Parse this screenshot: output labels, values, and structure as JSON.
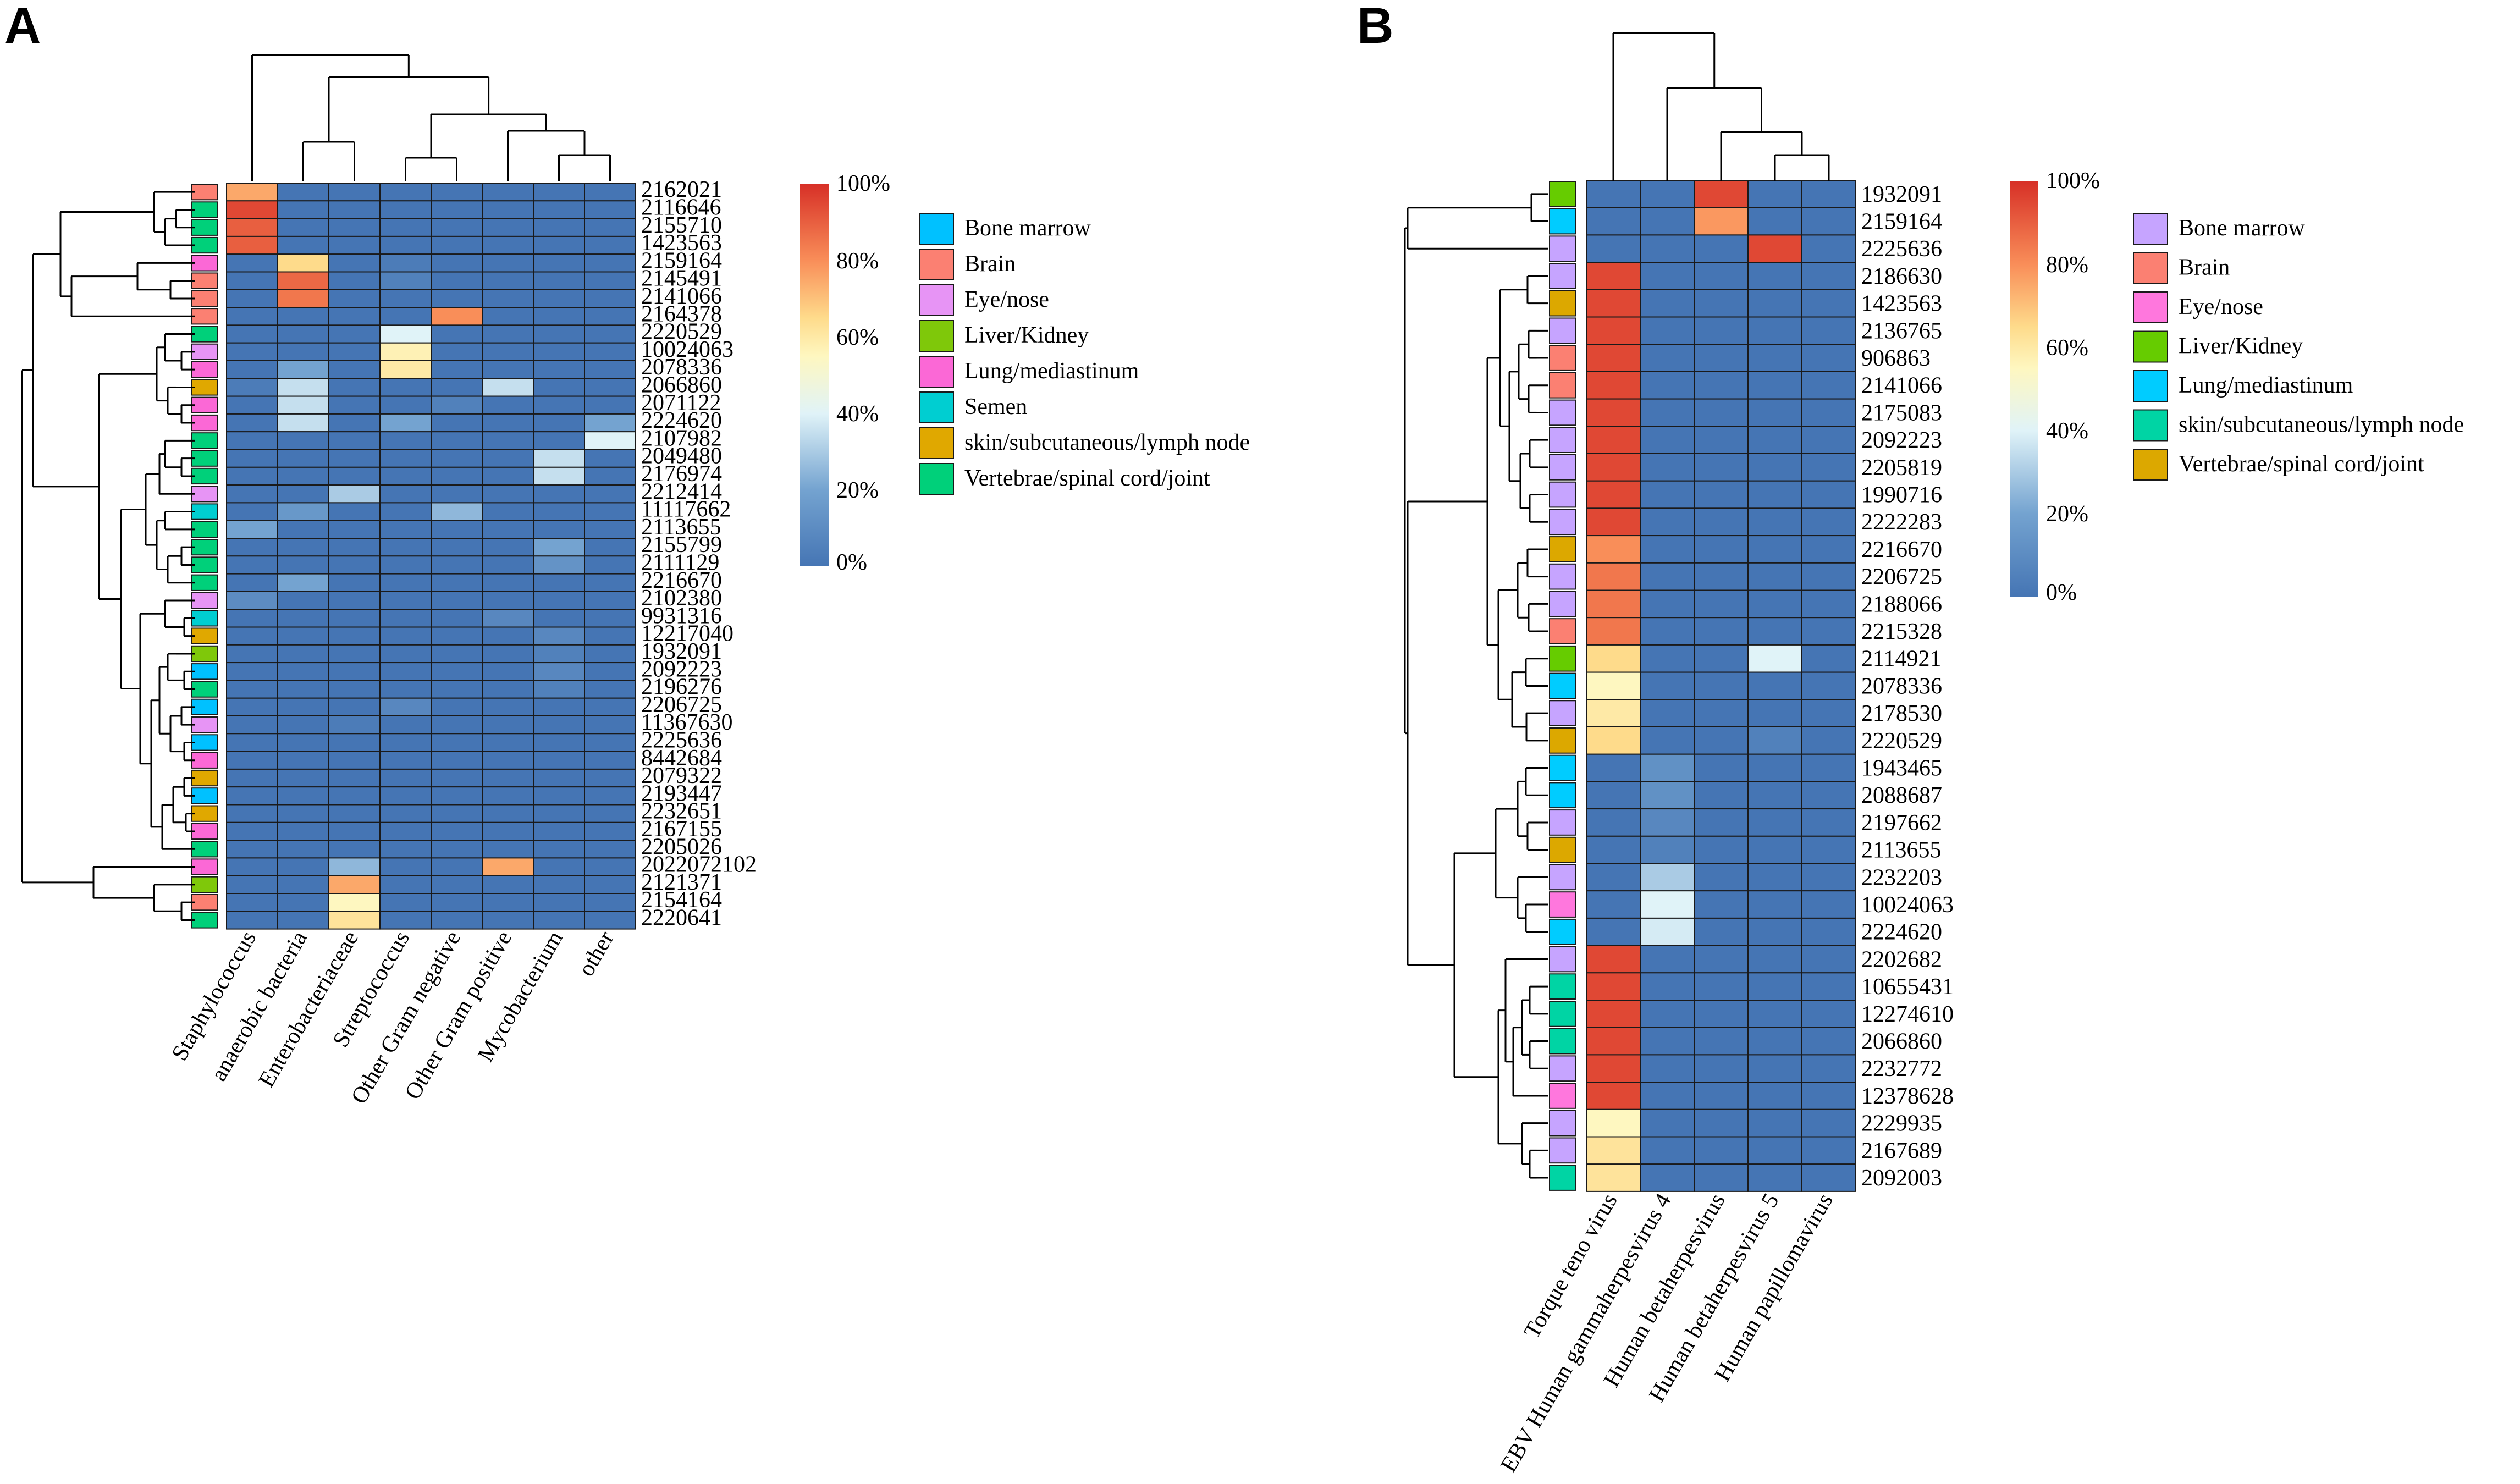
{
  "colors": {
    "Bone marrow": "#00c1ff",
    "Brain": "#fb8072",
    "Eye/nose": "#e794f5",
    "Liver/Kidney": "#7fc80a",
    "Lung/mediastinum": "#fb68d6",
    "Semen": "#00ced1",
    "skin/subcutaneous/lymph node": "#e0a800",
    "Vertebrae/spinal cord/joint": "#00d07a",
    "B:Bone marrow": "#c6a4ff",
    "B:Brain": "#fb8072",
    "B:Eye/nose": "#ff77dd",
    "B:Liver/Kidney": "#66cc00",
    "B:Lung/mediastinum": "#00ccff",
    "B:skin/subcutaneous/lymph node": "#00d4a4",
    "B:Vertebrae/spinal cord/joint": "#dca800"
  },
  "chart_data": [
    {
      "type": "heatmap",
      "panel": "A",
      "columns": [
        "Staphylococcus",
        "anaerobic bacteria",
        "Enterobacteriaceae",
        "Streptococcus",
        "Other Gram negative",
        "Other Gram positive",
        "Mycobacterium",
        "other"
      ],
      "rows": [
        "2162021",
        "2116646",
        "2155710",
        "1423563",
        "2159164",
        "2145491",
        "2141066",
        "2164378",
        "2220529",
        "10024063",
        "2078336",
        "2066860",
        "2071122",
        "2224620",
        "2107982",
        "2049480",
        "2176974",
        "2212414",
        "11117662",
        "2113655",
        "2155799",
        "2111129",
        "2216670",
        "2102380",
        "9931316",
        "12217040",
        "1932091",
        "2092223",
        "2196276",
        "2206725",
        "11367630",
        "2225636",
        "8442684",
        "2079322",
        "2193447",
        "2232651",
        "2167155",
        "2205026",
        "2022072102",
        "2121371",
        "2154164",
        "2220641"
      ],
      "row_groups": [
        "Brain",
        "Vertebrae/spinal cord/joint",
        "Vertebrae/spinal cord/joint",
        "Vertebrae/spinal cord/joint",
        "Lung/mediastinum",
        "Brain",
        "Brain",
        "Brain",
        "Vertebrae/spinal cord/joint",
        "Eye/nose",
        "Lung/mediastinum",
        "skin/subcutaneous/lymph node",
        "Lung/mediastinum",
        "Lung/mediastinum",
        "Vertebrae/spinal cord/joint",
        "Vertebrae/spinal cord/joint",
        "Vertebrae/spinal cord/joint",
        "Eye/nose",
        "Semen",
        "Vertebrae/spinal cord/joint",
        "Vertebrae/spinal cord/joint",
        "Vertebrae/spinal cord/joint",
        "Vertebrae/spinal cord/joint",
        "Eye/nose",
        "Semen",
        "skin/subcutaneous/lymph node",
        "Liver/Kidney",
        "Bone marrow",
        "Vertebrae/spinal cord/joint",
        "Bone marrow",
        "Eye/nose",
        "Bone marrow",
        "Lung/mediastinum",
        "skin/subcutaneous/lymph node",
        "Bone marrow",
        "skin/subcutaneous/lymph node",
        "Lung/mediastinum",
        "Vertebrae/spinal cord/joint",
        "Lung/mediastinum",
        "Liver/Kidney",
        "Brain",
        "Vertebrae/spinal cord/joint"
      ],
      "values": [
        [
          75,
          0,
          0,
          0,
          0,
          0,
          0,
          0
        ],
        [
          95,
          0,
          0,
          0,
          0,
          0,
          0,
          0
        ],
        [
          90,
          0,
          0,
          0,
          0,
          0,
          0,
          0
        ],
        [
          90,
          0,
          0,
          0,
          0,
          0,
          0,
          0
        ],
        [
          0,
          65,
          0,
          3,
          0,
          0,
          0,
          0
        ],
        [
          0,
          88,
          0,
          5,
          0,
          0,
          0,
          0
        ],
        [
          0,
          85,
          0,
          0,
          0,
          0,
          0,
          0
        ],
        [
          0,
          0,
          0,
          0,
          80,
          0,
          0,
          0
        ],
        [
          0,
          0,
          0,
          40,
          0,
          0,
          0,
          0
        ],
        [
          0,
          0,
          0,
          57,
          0,
          0,
          0,
          0
        ],
        [
          0,
          20,
          0,
          60,
          0,
          0,
          0,
          0
        ],
        [
          3,
          35,
          0,
          0,
          0,
          35,
          0,
          0
        ],
        [
          0,
          35,
          0,
          0,
          5,
          0,
          0,
          0
        ],
        [
          0,
          35,
          0,
          20,
          0,
          0,
          0,
          20
        ],
        [
          0,
          0,
          0,
          0,
          0,
          0,
          0,
          40
        ],
        [
          0,
          0,
          0,
          0,
          0,
          0,
          35,
          0
        ],
        [
          0,
          0,
          0,
          0,
          0,
          0,
          35,
          0
        ],
        [
          0,
          0,
          30,
          0,
          0,
          0,
          0,
          0
        ],
        [
          0,
          15,
          0,
          0,
          25,
          0,
          0,
          0
        ],
        [
          20,
          0,
          0,
          0,
          0,
          0,
          0,
          0
        ],
        [
          0,
          0,
          0,
          0,
          0,
          0,
          20,
          0
        ],
        [
          0,
          0,
          0,
          0,
          0,
          0,
          13,
          0
        ],
        [
          0,
          20,
          0,
          0,
          0,
          0,
          0,
          0
        ],
        [
          10,
          0,
          0,
          0,
          0,
          0,
          0,
          0
        ],
        [
          0,
          0,
          0,
          0,
          0,
          8,
          0,
          0
        ],
        [
          0,
          0,
          0,
          0,
          0,
          0,
          8,
          0
        ],
        [
          0,
          0,
          0,
          0,
          0,
          0,
          5,
          0
        ],
        [
          0,
          0,
          0,
          0,
          0,
          0,
          8,
          0
        ],
        [
          0,
          0,
          0,
          0,
          0,
          0,
          5,
          0
        ],
        [
          0,
          0,
          0,
          8,
          0,
          0,
          0,
          0
        ],
        [
          0,
          0,
          3,
          0,
          0,
          0,
          0,
          0
        ],
        [
          0,
          0,
          0,
          0,
          0,
          0,
          0,
          0
        ],
        [
          0,
          0,
          0,
          0,
          0,
          0,
          0,
          0
        ],
        [
          0,
          0,
          0,
          0,
          0,
          0,
          0,
          0
        ],
        [
          0,
          0,
          0,
          0,
          0,
          0,
          0,
          0
        ],
        [
          0,
          0,
          0,
          0,
          0,
          0,
          0,
          0
        ],
        [
          0,
          0,
          0,
          0,
          0,
          0,
          0,
          0
        ],
        [
          0,
          0,
          0,
          0,
          0,
          0,
          0,
          0
        ],
        [
          0,
          0,
          25,
          0,
          0,
          75,
          0,
          0
        ],
        [
          0,
          0,
          75,
          0,
          0,
          0,
          0,
          0
        ],
        [
          0,
          0,
          55,
          0,
          0,
          0,
          0,
          0
        ],
        [
          0,
          0,
          62,
          0,
          0,
          0,
          0,
          0
        ]
      ],
      "scale_ticks": [
        "100%",
        "80%",
        "60%",
        "40%",
        "20%",
        "0%"
      ],
      "legend": [
        "Bone marrow",
        "Brain",
        "Eye/nose",
        "Liver/Kidney",
        "Lung/mediastinum",
        "Semen",
        "skin/subcutaneous/lymph node",
        "Vertebrae/spinal cord/joint"
      ]
    },
    {
      "type": "heatmap",
      "panel": "B",
      "columns": [
        "Torque teno virus",
        "EBV Human gammaherpesvirus 4",
        "Human betaherpesvirus",
        "Human betaherpesvirus 5",
        "Human papillomavirus"
      ],
      "rows": [
        "1932091",
        "2159164",
        "2225636",
        "2186630",
        "1423563",
        "2136765",
        "906863",
        "2141066",
        "2175083",
        "2092223",
        "2205819",
        "1990716",
        "2222283",
        "2216670",
        "2206725",
        "2188066",
        "2215328",
        "2114921",
        "2078336",
        "2178530",
        "2220529",
        "1943465",
        "2088687",
        "2197662",
        "2113655",
        "2232203",
        "10024063",
        "2224620",
        "2202682",
        "10655431",
        "12274610",
        "2066860",
        "2232772",
        "12378628",
        "2229935",
        "2167689",
        "2092003"
      ],
      "row_groups": [
        "Liver/Kidney",
        "Lung/mediastinum",
        "Bone marrow",
        "Bone marrow",
        "Vertebrae/spinal cord/joint",
        "Bone marrow",
        "Brain",
        "Brain",
        "Bone marrow",
        "Bone marrow",
        "Bone marrow",
        "Bone marrow",
        "Bone marrow",
        "Vertebrae/spinal cord/joint",
        "Bone marrow",
        "Bone marrow",
        "Brain",
        "Liver/Kidney",
        "Lung/mediastinum",
        "Bone marrow",
        "Vertebrae/spinal cord/joint",
        "Lung/mediastinum",
        "Lung/mediastinum",
        "Bone marrow",
        "Vertebrae/spinal cord/joint",
        "Bone marrow",
        "Eye/nose",
        "Lung/mediastinum",
        "Bone marrow",
        "skin/subcutaneous/lymph node",
        "skin/subcutaneous/lymph node",
        "skin/subcutaneous/lymph node",
        "Bone marrow",
        "Eye/nose",
        "Bone marrow",
        "Bone marrow",
        "skin/subcutaneous/lymph node"
      ],
      "values": [
        [
          0,
          0,
          95,
          0,
          0
        ],
        [
          0,
          0,
          78,
          0,
          0
        ],
        [
          0,
          0,
          0,
          95,
          0
        ],
        [
          95,
          0,
          0,
          0,
          0
        ],
        [
          95,
          0,
          0,
          0,
          0
        ],
        [
          95,
          0,
          0,
          0,
          0
        ],
        [
          95,
          0,
          0,
          0,
          0
        ],
        [
          95,
          0,
          0,
          0,
          0
        ],
        [
          95,
          0,
          0,
          0,
          0
        ],
        [
          95,
          0,
          0,
          0,
          0
        ],
        [
          95,
          0,
          0,
          0,
          0
        ],
        [
          95,
          0,
          0,
          0,
          0
        ],
        [
          95,
          0,
          0,
          0,
          0
        ],
        [
          80,
          0,
          0,
          0,
          0
        ],
        [
          85,
          0,
          0,
          0,
          0
        ],
        [
          85,
          0,
          0,
          0,
          0
        ],
        [
          85,
          0,
          0,
          0,
          0
        ],
        [
          65,
          0,
          0,
          40,
          0
        ],
        [
          55,
          0,
          0,
          0,
          0
        ],
        [
          60,
          0,
          0,
          0,
          0
        ],
        [
          65,
          0,
          0,
          5,
          0
        ],
        [
          0,
          12,
          0,
          0,
          0
        ],
        [
          0,
          12,
          0,
          0,
          0
        ],
        [
          0,
          8,
          0,
          0,
          0
        ],
        [
          0,
          5,
          0,
          0,
          0
        ],
        [
          0,
          30,
          0,
          0,
          0
        ],
        [
          0,
          40,
          0,
          0,
          0
        ],
        [
          0,
          38,
          0,
          0,
          0
        ],
        [
          95,
          0,
          0,
          0,
          0
        ],
        [
          95,
          0,
          0,
          0,
          0
        ],
        [
          95,
          0,
          0,
          0,
          0
        ],
        [
          95,
          0,
          0,
          0,
          0
        ],
        [
          95,
          0,
          0,
          0,
          0
        ],
        [
          95,
          0,
          0,
          0,
          0
        ],
        [
          55,
          0,
          0,
          0,
          0
        ],
        [
          62,
          0,
          0,
          0,
          0
        ],
        [
          62,
          0,
          0,
          0,
          0
        ]
      ],
      "scale_ticks": [
        "100%",
        "80%",
        "60%",
        "40%",
        "20%",
        "0%"
      ],
      "legend": [
        "Bone marrow",
        "Brain",
        "Eye/nose",
        "Liver/Kidney",
        "Lung/mediastinum",
        "skin/subcutaneous/lymph node",
        "Vertebrae/spinal cord/joint"
      ]
    }
  ],
  "labels": {
    "panelA": "A",
    "panelB": "B"
  }
}
